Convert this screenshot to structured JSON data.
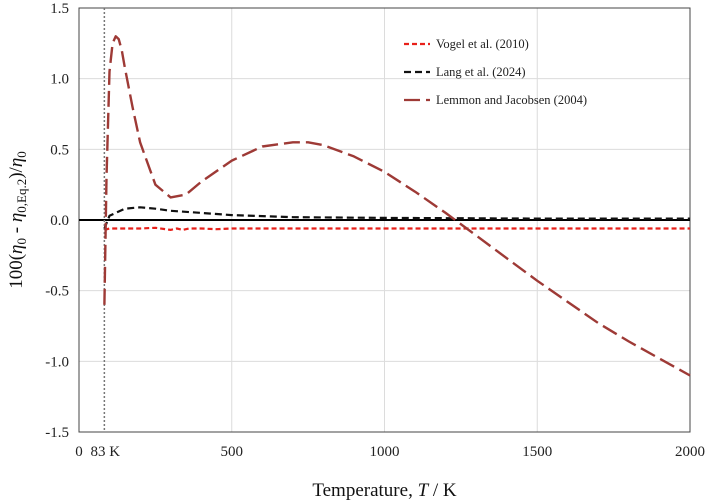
{
  "chart_data": {
    "type": "line",
    "xlabel": {
      "prefix": "Temperature, ",
      "var": "T",
      "suffix": " / K"
    },
    "ylabel": {
      "lead": "100(",
      "eta1": "η",
      "sub1": "0",
      "mid": " - ",
      "eta2": "η",
      "sub2": "0,Eq.2",
      "close": ")/",
      "eta3": "η",
      "sub3": "0"
    },
    "xlim": [
      0,
      2000
    ],
    "ylim": [
      -1.5,
      1.5
    ],
    "x_ticks": [
      0,
      500,
      1000,
      1500,
      2000
    ],
    "y_ticks": [
      -1.5,
      -1.0,
      -0.5,
      0.0,
      0.5,
      1.0,
      1.5
    ],
    "y_tick_labels": [
      "-1.5",
      "-1.0",
      "-0.5",
      "0.0",
      "0.5",
      "1.0",
      "1.5"
    ],
    "grid": true,
    "vertical_marker": {
      "x": 83,
      "label": "83 K"
    },
    "legend_position": "top-right",
    "series": [
      {
        "name": "Vogel et al. (2010)",
        "color": "#e8201a",
        "dash": "short",
        "x": [
          83,
          100,
          150,
          200,
          250,
          300,
          320,
          340,
          360,
          400,
          450,
          500,
          700,
          1000,
          1500,
          2000
        ],
        "y": [
          -0.07,
          -0.06,
          -0.06,
          -0.06,
          -0.055,
          -0.07,
          -0.06,
          -0.07,
          -0.06,
          -0.06,
          -0.065,
          -0.06,
          -0.06,
          -0.06,
          -0.06,
          -0.06
        ]
      },
      {
        "name": "Lang et al. (2024)",
        "color": "#111111",
        "dash": "medium",
        "x": [
          83,
          100,
          150,
          200,
          250,
          300,
          400,
          500,
          700,
          1000,
          1500,
          2000
        ],
        "y": [
          -0.06,
          0.03,
          0.08,
          0.09,
          0.08,
          0.065,
          0.05,
          0.035,
          0.02,
          0.015,
          0.01,
          0.01
        ]
      },
      {
        "name": "Lemmon and Jacobsen (2004)",
        "color": "#9e3a36",
        "dash": "long",
        "x": [
          83,
          90,
          100,
          110,
          120,
          130,
          140,
          150,
          175,
          200,
          250,
          300,
          350,
          400,
          500,
          600,
          700,
          750,
          800,
          900,
          1000,
          1100,
          1200,
          1300,
          1400,
          1500,
          1600,
          1700,
          1800,
          1900,
          2000
        ],
        "y": [
          -0.6,
          0.3,
          1.05,
          1.25,
          1.3,
          1.28,
          1.2,
          1.08,
          0.8,
          0.55,
          0.25,
          0.16,
          0.18,
          0.27,
          0.42,
          0.52,
          0.55,
          0.55,
          0.53,
          0.45,
          0.34,
          0.2,
          0.05,
          -0.11,
          -0.27,
          -0.43,
          -0.58,
          -0.73,
          -0.86,
          -0.98,
          -1.1
        ]
      }
    ]
  }
}
